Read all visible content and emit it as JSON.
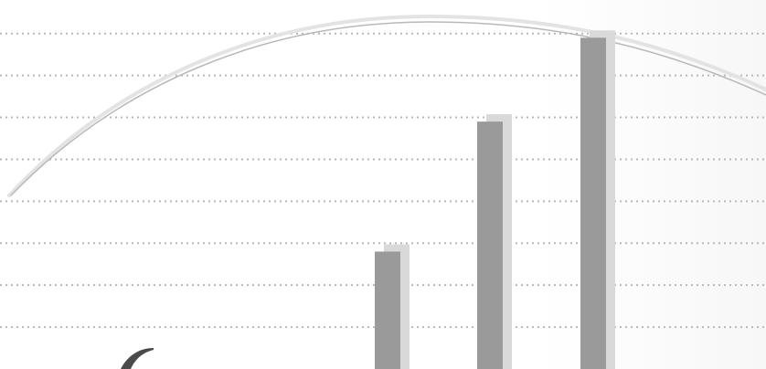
{
  "chart_data": {
    "type": "bar",
    "title": "",
    "xlabel": "",
    "ylabel": "",
    "categories": [
      "",
      "",
      ""
    ],
    "values": [
      2.8,
      5.9,
      7.9
    ],
    "ylim": [
      0,
      8.8
    ],
    "grid": true,
    "legend": "none",
    "colors": {
      "bar": "#9a9a9a",
      "bar_shadow": "#d9d9d9",
      "grid": "#b8b8b8",
      "arc": "#b9b9b9",
      "arc_outer": "#e3e3e3",
      "decor": "#4a4a4a"
    }
  }
}
